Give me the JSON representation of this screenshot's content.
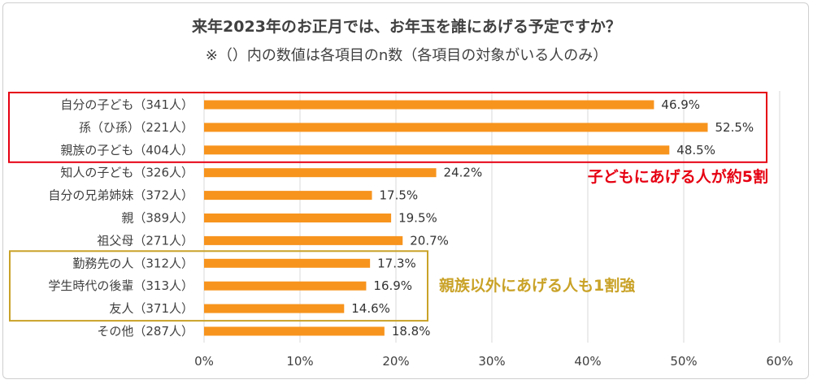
{
  "chart_data": {
    "type": "bar",
    "orientation": "horizontal",
    "title": "来年2023年のお正月では、お年玉を誰にあげる予定ですか？",
    "subtitle": "※（）内の数値は各項目のn数（各項目の対象がいる人のみ）",
    "categories": [
      "自分の子ども（341人）",
      "孫（ひ孫）（221人）",
      "親族の子ども（404人）",
      "知人の子ども（326人）",
      "自分の兄弟姉妹（372人）",
      "親（389人）",
      "祖父母（271人）",
      "勤務先の人（312人）",
      "学生時代の後輩（313人）",
      "友人（371人）",
      "その他（287人）"
    ],
    "values": [
      46.9,
      52.5,
      48.5,
      24.2,
      17.5,
      19.5,
      20.7,
      17.3,
      16.9,
      14.6,
      18.8
    ],
    "value_labels": [
      "46.9%",
      "52.5%",
      "48.5%",
      "24.2%",
      "17.5%",
      "19.5%",
      "20.7%",
      "17.3%",
      "16.9%",
      "14.6%",
      "18.8%"
    ],
    "xlim": [
      0,
      60
    ],
    "xticks": [
      "0%",
      "10%",
      "20%",
      "30%",
      "40%",
      "50%",
      "60%"
    ],
    "grid": true,
    "annotations": [
      {
        "text": "子どもにあげる人が約5割",
        "group": [
          0,
          2
        ],
        "color": "#e60012"
      },
      {
        "text": "親族以外にあげる人も1割強",
        "group": [
          7,
          9
        ],
        "color": "#c9a227"
      }
    ],
    "colors": {
      "bar": "#f7941d",
      "grid": "#d9d9d9"
    }
  }
}
